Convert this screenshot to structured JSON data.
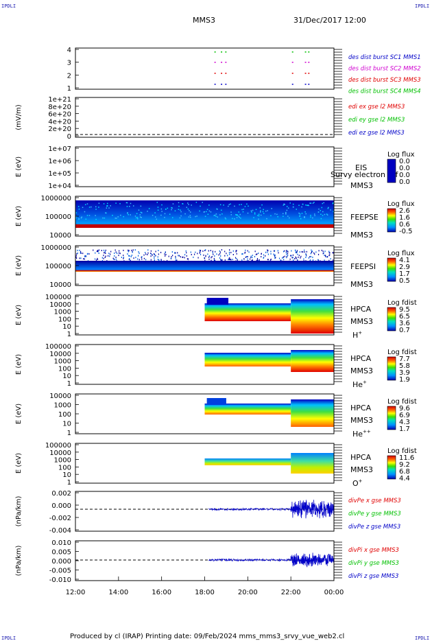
{
  "header": {
    "mission": "MMS3",
    "datetime": "31/Dec/2017 12:00",
    "corner_label": "IPDLI"
  },
  "footer": {
    "text": "Produced by cl (IRAP)   Printing date: 09/Feb/2024   mms_mms3_srvy_vue_web2.cl"
  },
  "colors": {
    "c1": "#0000c8",
    "c2": "#d000d0",
    "c3": "#e00000",
    "c4": "#00c000"
  },
  "chart_data": {
    "type": "heatmap",
    "x_ticks": [
      "12:00",
      "14:00",
      "16:00",
      "18:00",
      "20:00",
      "22:00",
      "00:00"
    ],
    "x_range_hours": [
      12,
      24
    ],
    "panels": [
      {
        "id": "burst",
        "ylabel": "",
        "ticks": [
          "4",
          "3",
          "2",
          "1"
        ],
        "legend": [
          {
            "text": "des dist burst SC1 MMS1",
            "color": "#0000c8"
          },
          {
            "text": "des dist burst SC2 MMS2",
            "color": "#d000d0"
          },
          {
            "text": "des dist burst SC3 MMS3",
            "color": "#e00000"
          },
          {
            "text": "des dist burst SC4 MMS4",
            "color": "#00c000"
          }
        ],
        "burst_intervals_hours": [
          18.45,
          18.75,
          18.95,
          22.05,
          22.65,
          22.8
        ]
      },
      {
        "id": "edi",
        "ylabel": "(mV/m)",
        "ticks": [
          "1e+21",
          "8e+20",
          "6e+20",
          "4e+20",
          "2e+20",
          "0"
        ],
        "legend": [
          {
            "text": "edi ex gse l2 MMS3",
            "color": "#e00000"
          },
          {
            "text": "edi ey gse l2 MMS3",
            "color": "#00c000"
          },
          {
            "text": "edi ez gse l2 MMS3",
            "color": "#0000c8"
          }
        ]
      },
      {
        "id": "eis",
        "ylabel": "E (eV)",
        "ticks": [
          "1e+07",
          "1e+06",
          "1e+05",
          "1e+04"
        ],
        "instrument": "EIS",
        "subtitle": "Survy electron tof",
        "sc": "MMS3",
        "cbar_title": "Log flux",
        "cbar_ticks": [
          "0.0",
          "0.0",
          "0.0",
          "0.0"
        ]
      },
      {
        "id": "feepse",
        "ylabel": "E (eV)",
        "ticks": [
          "1000000",
          "100000",
          "10000"
        ],
        "instrument": "FEEPSE",
        "sc": "MMS3",
        "cbar_title": "Log flux",
        "cbar_ticks": [
          "2.6",
          "1.6",
          "0.6",
          "-0.5"
        ]
      },
      {
        "id": "feepsi",
        "ylabel": "E (eV)",
        "ticks": [
          "1000000",
          "100000",
          "10000"
        ],
        "instrument": "FEEPSI",
        "sc": "MMS3",
        "cbar_title": "Log flux",
        "cbar_ticks": [
          "4.1",
          "2.9",
          "1.7",
          "0.5"
        ]
      },
      {
        "id": "hpca_h",
        "ylabel": "E (eV)",
        "ticks": [
          "100000",
          "10000",
          "1000",
          "100",
          "10",
          "1"
        ],
        "instrument": "HPCA",
        "sc": "MMS3",
        "species": "H",
        "species_sup": "+",
        "cbar_title": "Log fdist",
        "cbar_ticks": [
          "9.5",
          "6.5",
          "3.6",
          "0.7"
        ]
      },
      {
        "id": "hpca_he1",
        "ylabel": "E (eV)",
        "ticks": [
          "100000",
          "10000",
          "1000",
          "100",
          "10",
          "1"
        ],
        "instrument": "HPCA",
        "sc": "MMS3",
        "species": "He",
        "species_sup": "+",
        "cbar_title": "Log fdist",
        "cbar_ticks": [
          "7.7",
          "5.8",
          "3.9",
          "1.9"
        ]
      },
      {
        "id": "hpca_he2",
        "ylabel": "E (eV)",
        "ticks": [
          "10000",
          "1000",
          "100",
          "10",
          "1"
        ],
        "instrument": "HPCA",
        "sc": "MMS3",
        "species": "He",
        "species_sup": "++",
        "cbar_title": "Log fdist",
        "cbar_ticks": [
          "9.6",
          "6.9",
          "4.3",
          "1.7"
        ]
      },
      {
        "id": "hpca_o",
        "ylabel": "E (eV)",
        "ticks": [
          "100000",
          "10000",
          "1000",
          "100",
          "10",
          "1"
        ],
        "instrument": "HPCA",
        "sc": "MMS3",
        "species": "O",
        "species_sup": "+",
        "cbar_title": "Log fdist",
        "cbar_ticks": [
          "11.6",
          "9.2",
          "6.8",
          "4.4"
        ]
      },
      {
        "id": "divpe",
        "ylabel": "(nPa/km)",
        "ticks": [
          "0.002",
          "0.000",
          "-0.002",
          "-0.004"
        ],
        "legend": [
          {
            "text": "divPe x gse MMS3",
            "color": "#e00000"
          },
          {
            "text": "divPe y gse MMS3",
            "color": "#00c000"
          },
          {
            "text": "divPe z gse MMS3",
            "color": "#0000c8"
          }
        ]
      },
      {
        "id": "divpi",
        "ylabel": "(nPa/km)",
        "ticks": [
          "0.010",
          "0.005",
          "0.000",
          "-0.005",
          "-0.010"
        ],
        "legend": [
          {
            "text": "divPi x gse MMS3",
            "color": "#e00000"
          },
          {
            "text": "divPi y gse MMS3",
            "color": "#00c000"
          },
          {
            "text": "divPi z gse MMS3",
            "color": "#0000c8"
          }
        ]
      }
    ]
  }
}
